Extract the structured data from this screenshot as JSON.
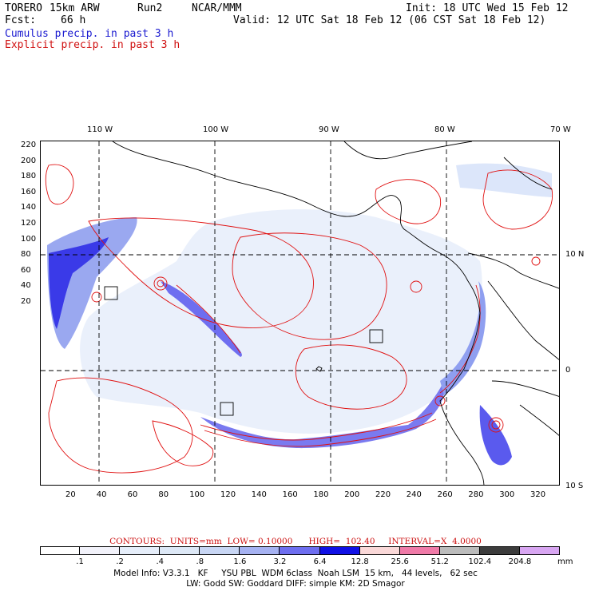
{
  "header": {
    "model": "TORERO",
    "resolution": "15km ARW",
    "run": "Run2",
    "org": "NCAR/MMM",
    "init": "Init: 18 UTC Wed 15 Feb 12",
    "fcst_label": "Fcst:",
    "fcst_value": "66 h",
    "valid": "Valid: 12 UTC Sat 18 Feb 12 (06 CST Sat 18 Feb 12)",
    "field1": "Cumulus precip. in past 3 h",
    "field2": "Explicit precip. in past 3 h"
  },
  "map": {
    "lon_labels": [
      "110 W",
      "100 W",
      "90 W",
      "80 W",
      "70 W"
    ],
    "lat_labels": [
      "10 N",
      "0",
      "10 S"
    ],
    "y_ticks": [
      "220",
      "200",
      "180",
      "160",
      "140",
      "120",
      "100",
      "80",
      "60",
      "40",
      "20"
    ],
    "x_ticks": [
      "20",
      "40",
      "60",
      "80",
      "100",
      "120",
      "140",
      "160",
      "180",
      "200",
      "220",
      "240",
      "260",
      "280",
      "300",
      "320"
    ],
    "colors": {
      "contour": "#e01010",
      "coast": "#000000",
      "precip_light": "#dce6fa",
      "precip_mid": "#8f9ff0",
      "precip_strong": "#2a2ae6"
    }
  },
  "contours_text": "CONTOURS:  UNITS=mm  LOW= 0.10000      HIGH=  102.40     INTERVAL=X  4.0000",
  "colorbar": {
    "unit": "mm",
    "labels": [
      ".1",
      ".2",
      ".4",
      ".8",
      "1.6",
      "3.2",
      "6.4",
      "12.8",
      "25.6",
      "51.2",
      "102.4",
      "204.8"
    ],
    "colors": [
      "#ffffff",
      "#f2f2fa",
      "#e6eefa",
      "#dde8f6",
      "#c8d6f4",
      "#a6b2f2",
      "#6e6ef0",
      "#1010e6",
      "#fad8d8",
      "#f07aa8",
      "#bcbcbc",
      "#3c3c3c",
      "#d8a6f2"
    ]
  },
  "footer": {
    "line1": "Model Info: V3.3.1   KF     YSU PBL  WDM 6class  Noah LSM  15 km,   44 levels,   62 sec",
    "line2": "LW: Godd SW: Goddard DIFF: simple KM: 2D Smagor"
  }
}
